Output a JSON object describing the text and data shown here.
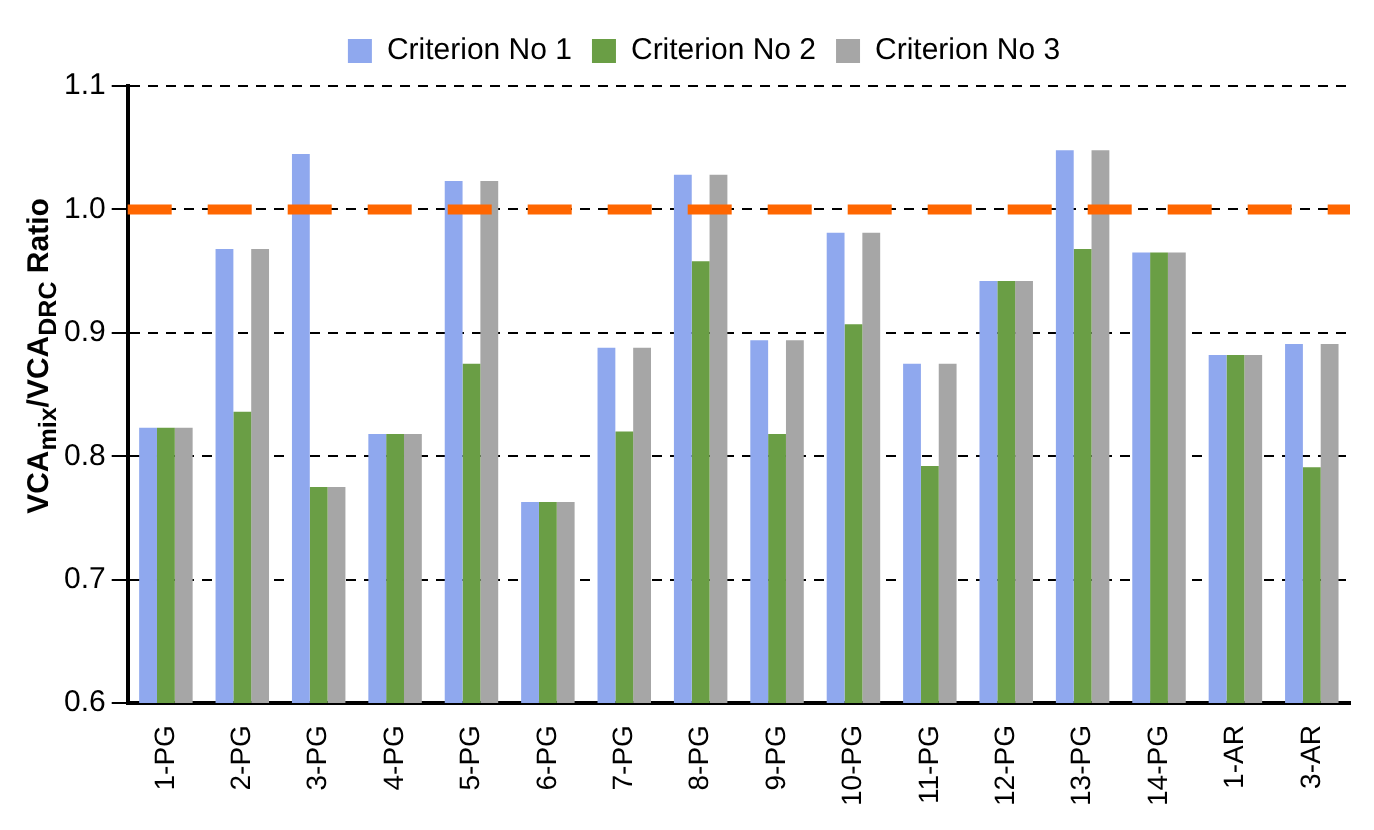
{
  "chart_data": {
    "type": "bar",
    "ylabel": "VCA$_{mix}$/VCA$_{DRC}$ Ratio",
    "categories": [
      "1-PG",
      "2-PG",
      "3-PG",
      "4-PG",
      "5-PG",
      "6-PG",
      "7-PG",
      "8-PG",
      "9-PG",
      "10-PG",
      "11-PG",
      "12-PG",
      "13-PG",
      "14-PG",
      "1-AR",
      "3-AR"
    ],
    "series": [
      {
        "name": "Criterion No 1",
        "color": "#8fa8ee",
        "values": [
          0.823,
          0.968,
          1.045,
          0.818,
          1.023,
          0.763,
          0.888,
          1.028,
          0.894,
          0.981,
          0.875,
          0.942,
          1.048,
          0.965,
          0.882,
          0.891
        ]
      },
      {
        "name": "Criterion No 2",
        "color": "#6a9e45",
        "values": [
          0.823,
          0.836,
          0.775,
          0.818,
          0.875,
          0.763,
          0.82,
          0.958,
          0.818,
          0.907,
          0.792,
          0.942,
          0.968,
          0.965,
          0.882,
          0.791
        ]
      },
      {
        "name": "Criterion No 3",
        "color": "#a6a6a6",
        "values": [
          0.823,
          0.968,
          0.775,
          0.818,
          1.023,
          0.763,
          0.888,
          1.028,
          0.894,
          0.981,
          0.875,
          0.942,
          1.048,
          0.965,
          0.882,
          0.891
        ]
      }
    ],
    "ylim": [
      0.6,
      1.1
    ],
    "yticks": [
      {
        "value": 0.6,
        "label": "0.6"
      },
      {
        "value": 0.7,
        "label": "0.7"
      },
      {
        "value": 0.8,
        "label": "0.8"
      },
      {
        "value": 0.9,
        "label": "0.9"
      },
      {
        "value": 1,
        "label": "1.0"
      },
      {
        "value": 1.1,
        "label": "1.1"
      }
    ],
    "grid": "y",
    "legend": "top",
    "ref_lines": [
      {
        "axis": "y",
        "value": 1,
        "color": "#ff6600",
        "line_style": "dashed"
      }
    ]
  }
}
